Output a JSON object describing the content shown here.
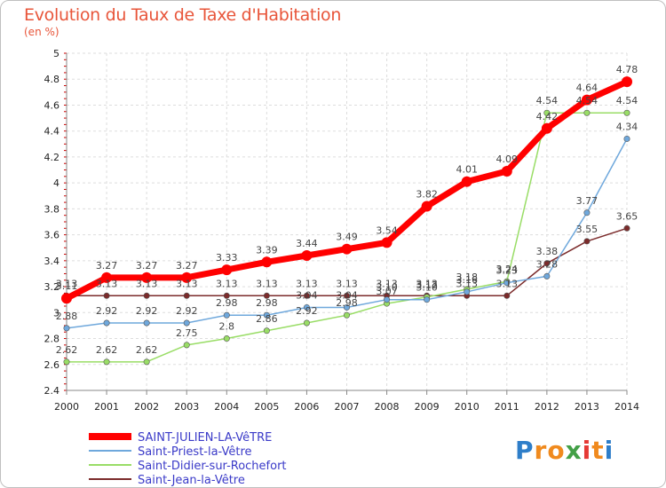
{
  "chart_data": {
    "type": "line",
    "title": "Evolution du Taux de Taxe d'Habitation",
    "subtitle": "(en %)",
    "x": [
      "2000",
      "2001",
      "2002",
      "2003",
      "2004",
      "2005",
      "2006",
      "2007",
      "2008",
      "2009",
      "2010",
      "2011",
      "2012",
      "2013",
      "2014"
    ],
    "ylim": [
      2.4,
      5
    ],
    "yticks": [
      2.4,
      2.6,
      2.8,
      3,
      3.2,
      3.4,
      3.6,
      3.8,
      4,
      4.2,
      4.4,
      4.6,
      4.8,
      5
    ],
    "ytick_labels": [
      "2.4",
      "2.6",
      "2.8",
      "3",
      "3.2",
      "3.4",
      "3.6",
      "3.8",
      "4",
      "4.2",
      "4.4",
      "4.6",
      "4.8",
      "5"
    ],
    "grid": true,
    "legend_position": "bottom-left",
    "series": [
      {
        "name": "SAINT-JULIEN-LA-VêTRE",
        "color": "#ff0000",
        "values": [
          3.11,
          3.27,
          3.27,
          3.27,
          3.33,
          3.39,
          3.44,
          3.49,
          3.54,
          3.82,
          4.01,
          4.09,
          4.42,
          4.64,
          4.78
        ],
        "labels": [
          "3.11",
          "3.27",
          "3.27",
          "3.27",
          "3.33",
          "3.39",
          "3.44",
          "3.49",
          "3.54",
          "3.82",
          "4.01",
          "4.09",
          "4.42",
          "4.64",
          "4.78"
        ]
      },
      {
        "name": "Saint-Priest-la-Vêtre",
        "color": "#6fa8dc",
        "values": [
          2.88,
          2.92,
          2.92,
          2.92,
          2.98,
          2.98,
          3.04,
          3.04,
          3.1,
          3.1,
          3.16,
          3.23,
          3.28,
          3.77,
          4.34
        ],
        "labels": [
          "2.88",
          "2.92",
          "2.92",
          "2.92",
          "2.98",
          "2.98",
          "3.04",
          "3.04",
          "3.10",
          "3.10",
          "3.16",
          "3.23",
          "3.28",
          "3.77",
          "4.34"
        ]
      },
      {
        "name": "Saint-Didier-sur-Rochefort",
        "color": "#99dd66",
        "values": [
          2.62,
          2.62,
          2.62,
          2.75,
          2.8,
          2.86,
          2.92,
          2.98,
          3.07,
          3.12,
          3.18,
          3.24,
          4.54,
          4.54,
          4.54
        ],
        "labels": [
          "2.62",
          "2.62",
          "2.62",
          "2.75",
          "2.8",
          "2.86",
          "2.92",
          "2.98",
          "3.07",
          "3.12",
          "3.18",
          "3.24",
          "4.54",
          "4.54",
          "4.54"
        ]
      },
      {
        "name": "Saint-Jean-la-Vêtre",
        "color": "#7b2b2b",
        "values": [
          3.13,
          3.13,
          3.13,
          3.13,
          3.13,
          3.13,
          3.13,
          3.13,
          3.13,
          3.13,
          3.13,
          3.13,
          3.38,
          3.55,
          3.65
        ],
        "labels": [
          "3.13",
          "3.13",
          "3.13",
          "3.13",
          "3.13",
          "3.13",
          "3.13",
          "3.13",
          "3.13",
          "3.13",
          "3.13",
          "3.13",
          "3.38",
          "3.55",
          "3.65"
        ]
      }
    ]
  },
  "logo": {
    "letters": [
      "P",
      "r",
      "o",
      "x",
      "i",
      "t",
      "i"
    ],
    "colors": [
      "#2e7ec9",
      "#f08a1e",
      "#f08a1e",
      "#43a047",
      "#e53935",
      "#f08a1e",
      "#2e7ec9"
    ]
  }
}
